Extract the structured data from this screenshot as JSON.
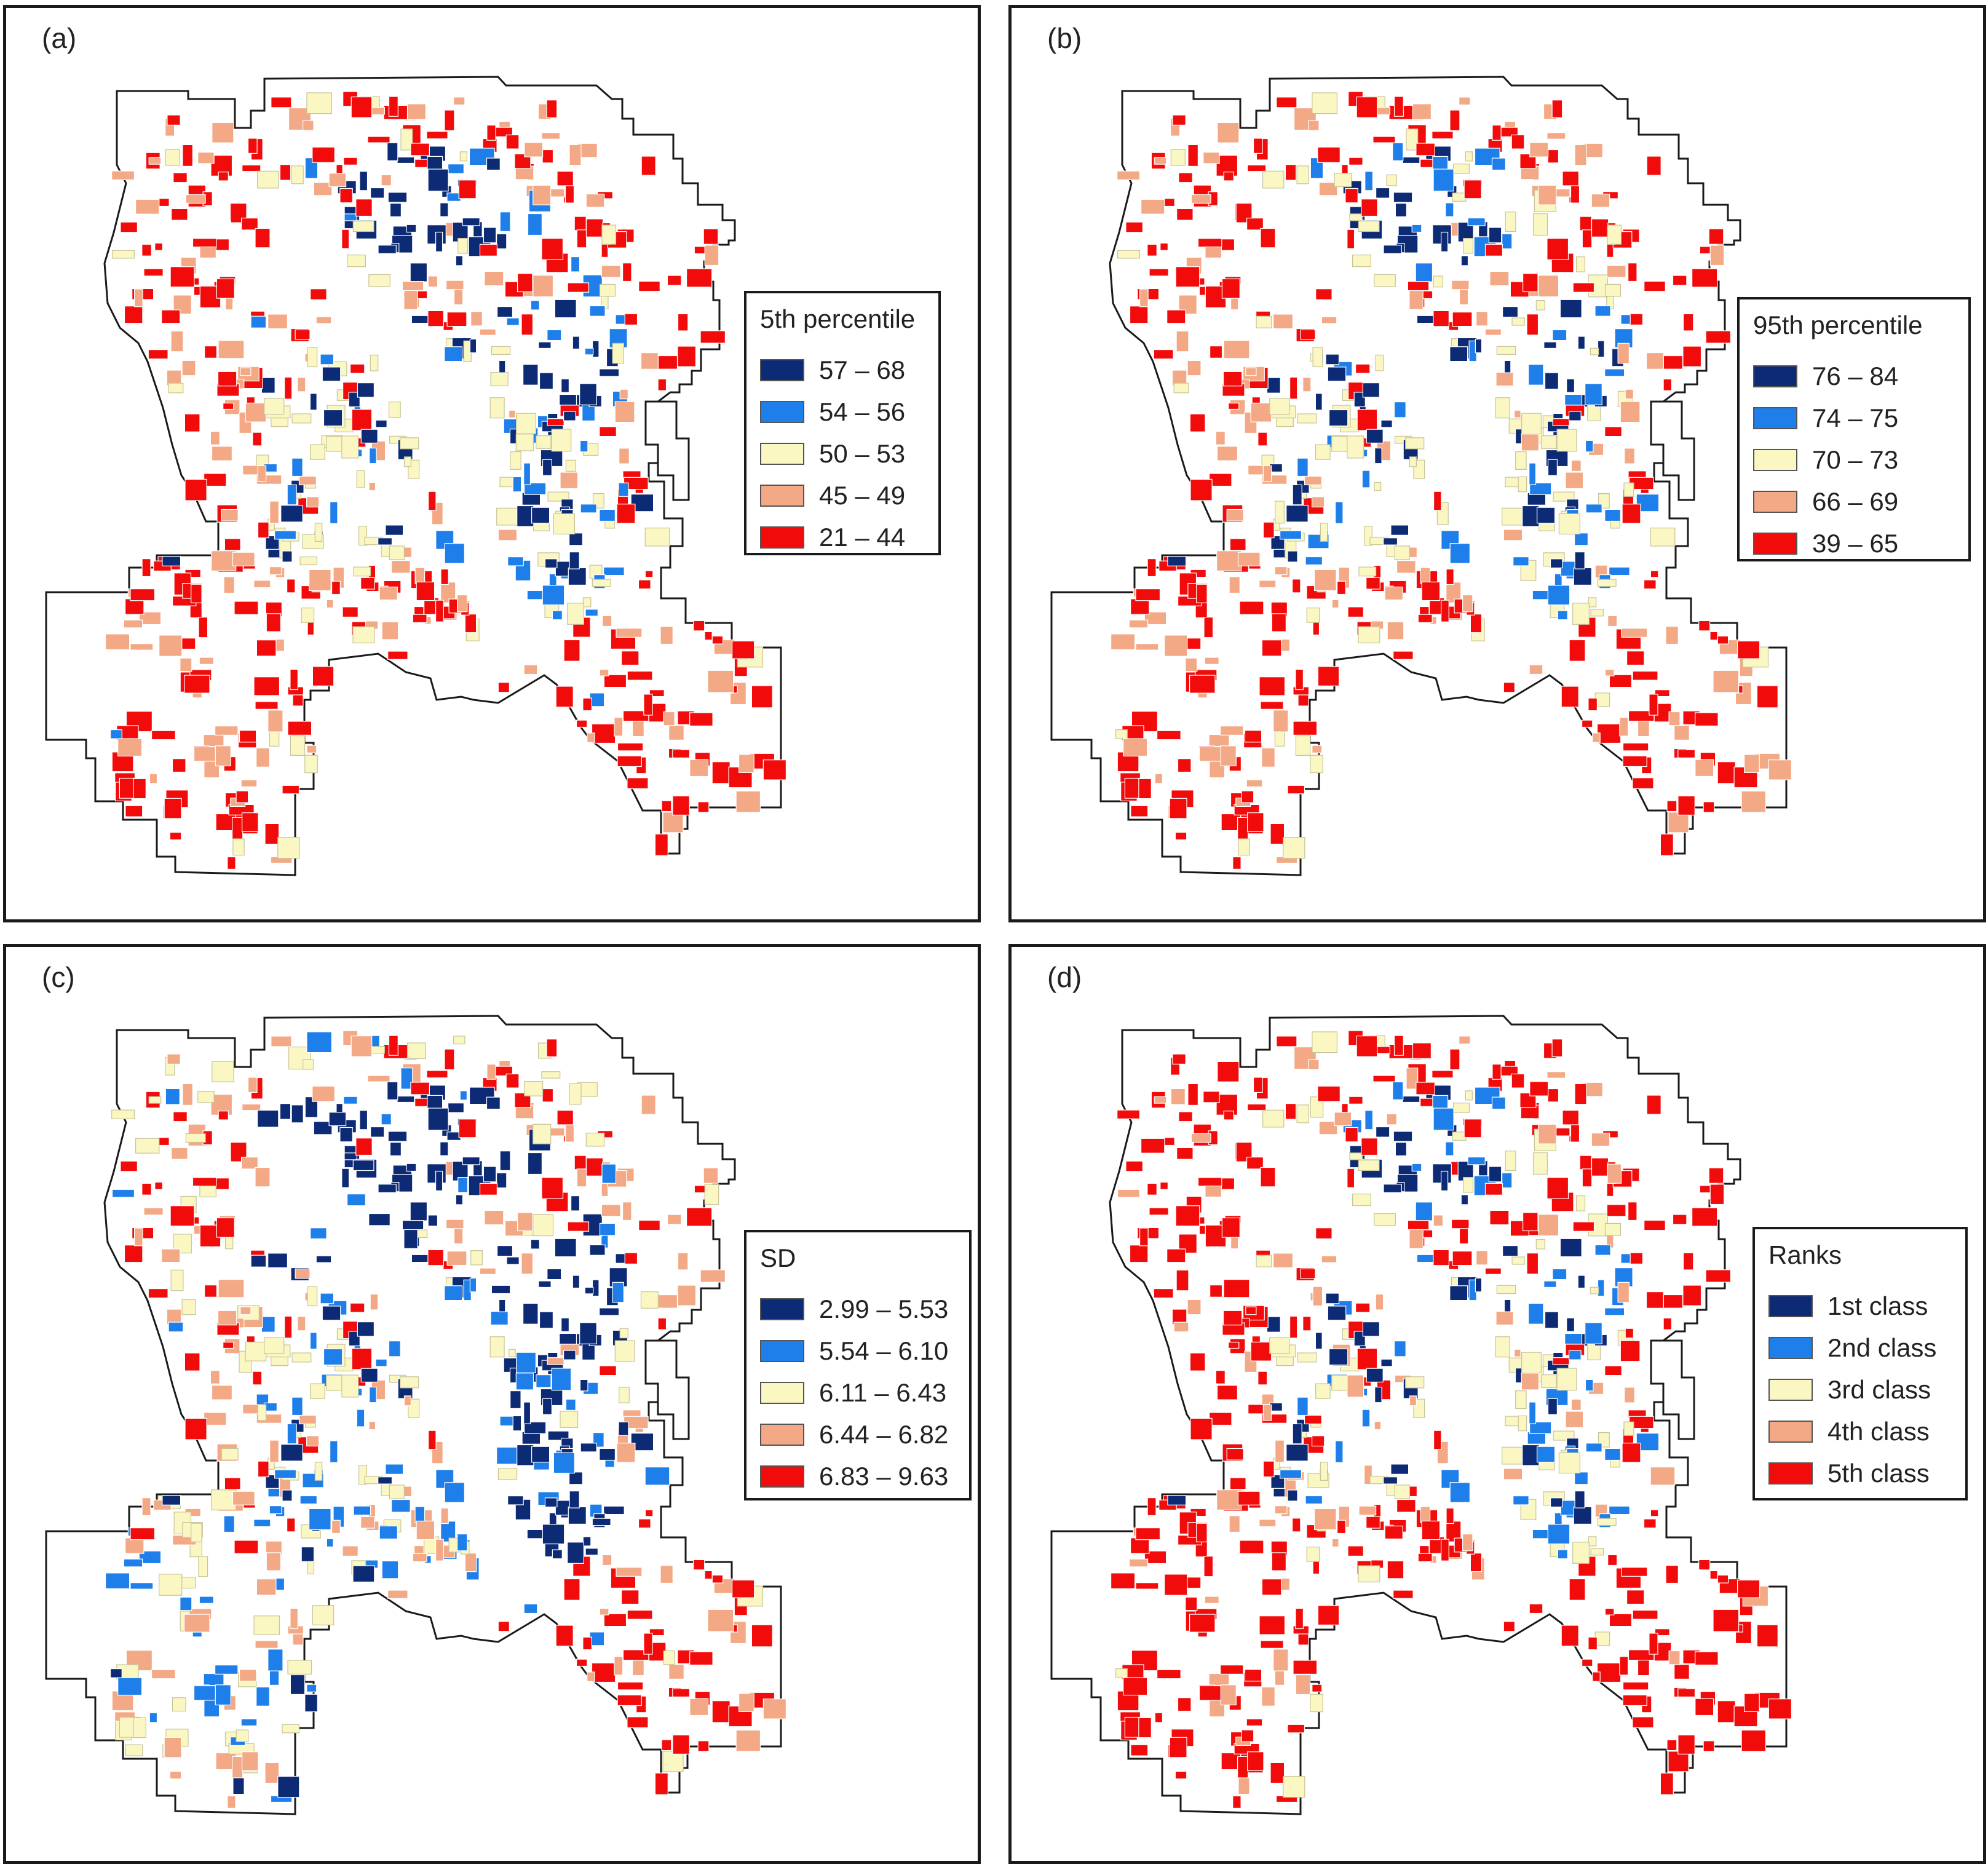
{
  "colors": {
    "class1": "#0d2a74",
    "class2": "#1f7fea",
    "class3": "#fbf7c2",
    "class4": "#f4a986",
    "class5": "#f20b0b",
    "outline": "#1a1a1a"
  },
  "panels": [
    {
      "id": "a",
      "label": "(a)",
      "legend_title": "5th percentile",
      "legend_items": [
        "57 – 68",
        "54 – 56",
        "50 – 53",
        "45 – 49",
        "21 – 44"
      ],
      "pattern": "p5"
    },
    {
      "id": "b",
      "label": "(b)",
      "legend_title": "95th percentile",
      "legend_items": [
        "76 – 84",
        "74 – 75",
        "70 – 73",
        "66 – 69",
        "39 – 65"
      ],
      "pattern": "p95"
    },
    {
      "id": "c",
      "label": "(c)",
      "legend_title": "SD",
      "legend_items": [
        "2.99 – 5.53",
        "5.54 – 6.10",
        "6.11 – 6.43",
        "6.44 – 6.82",
        "6.83 – 9.63"
      ],
      "pattern": "sd"
    },
    {
      "id": "d",
      "label": "(d)",
      "legend_title": "Ranks",
      "legend_items": [
        "1st class",
        "2nd class",
        "3rd class",
        "4th class",
        "5th class"
      ],
      "pattern": "ranks"
    }
  ]
}
